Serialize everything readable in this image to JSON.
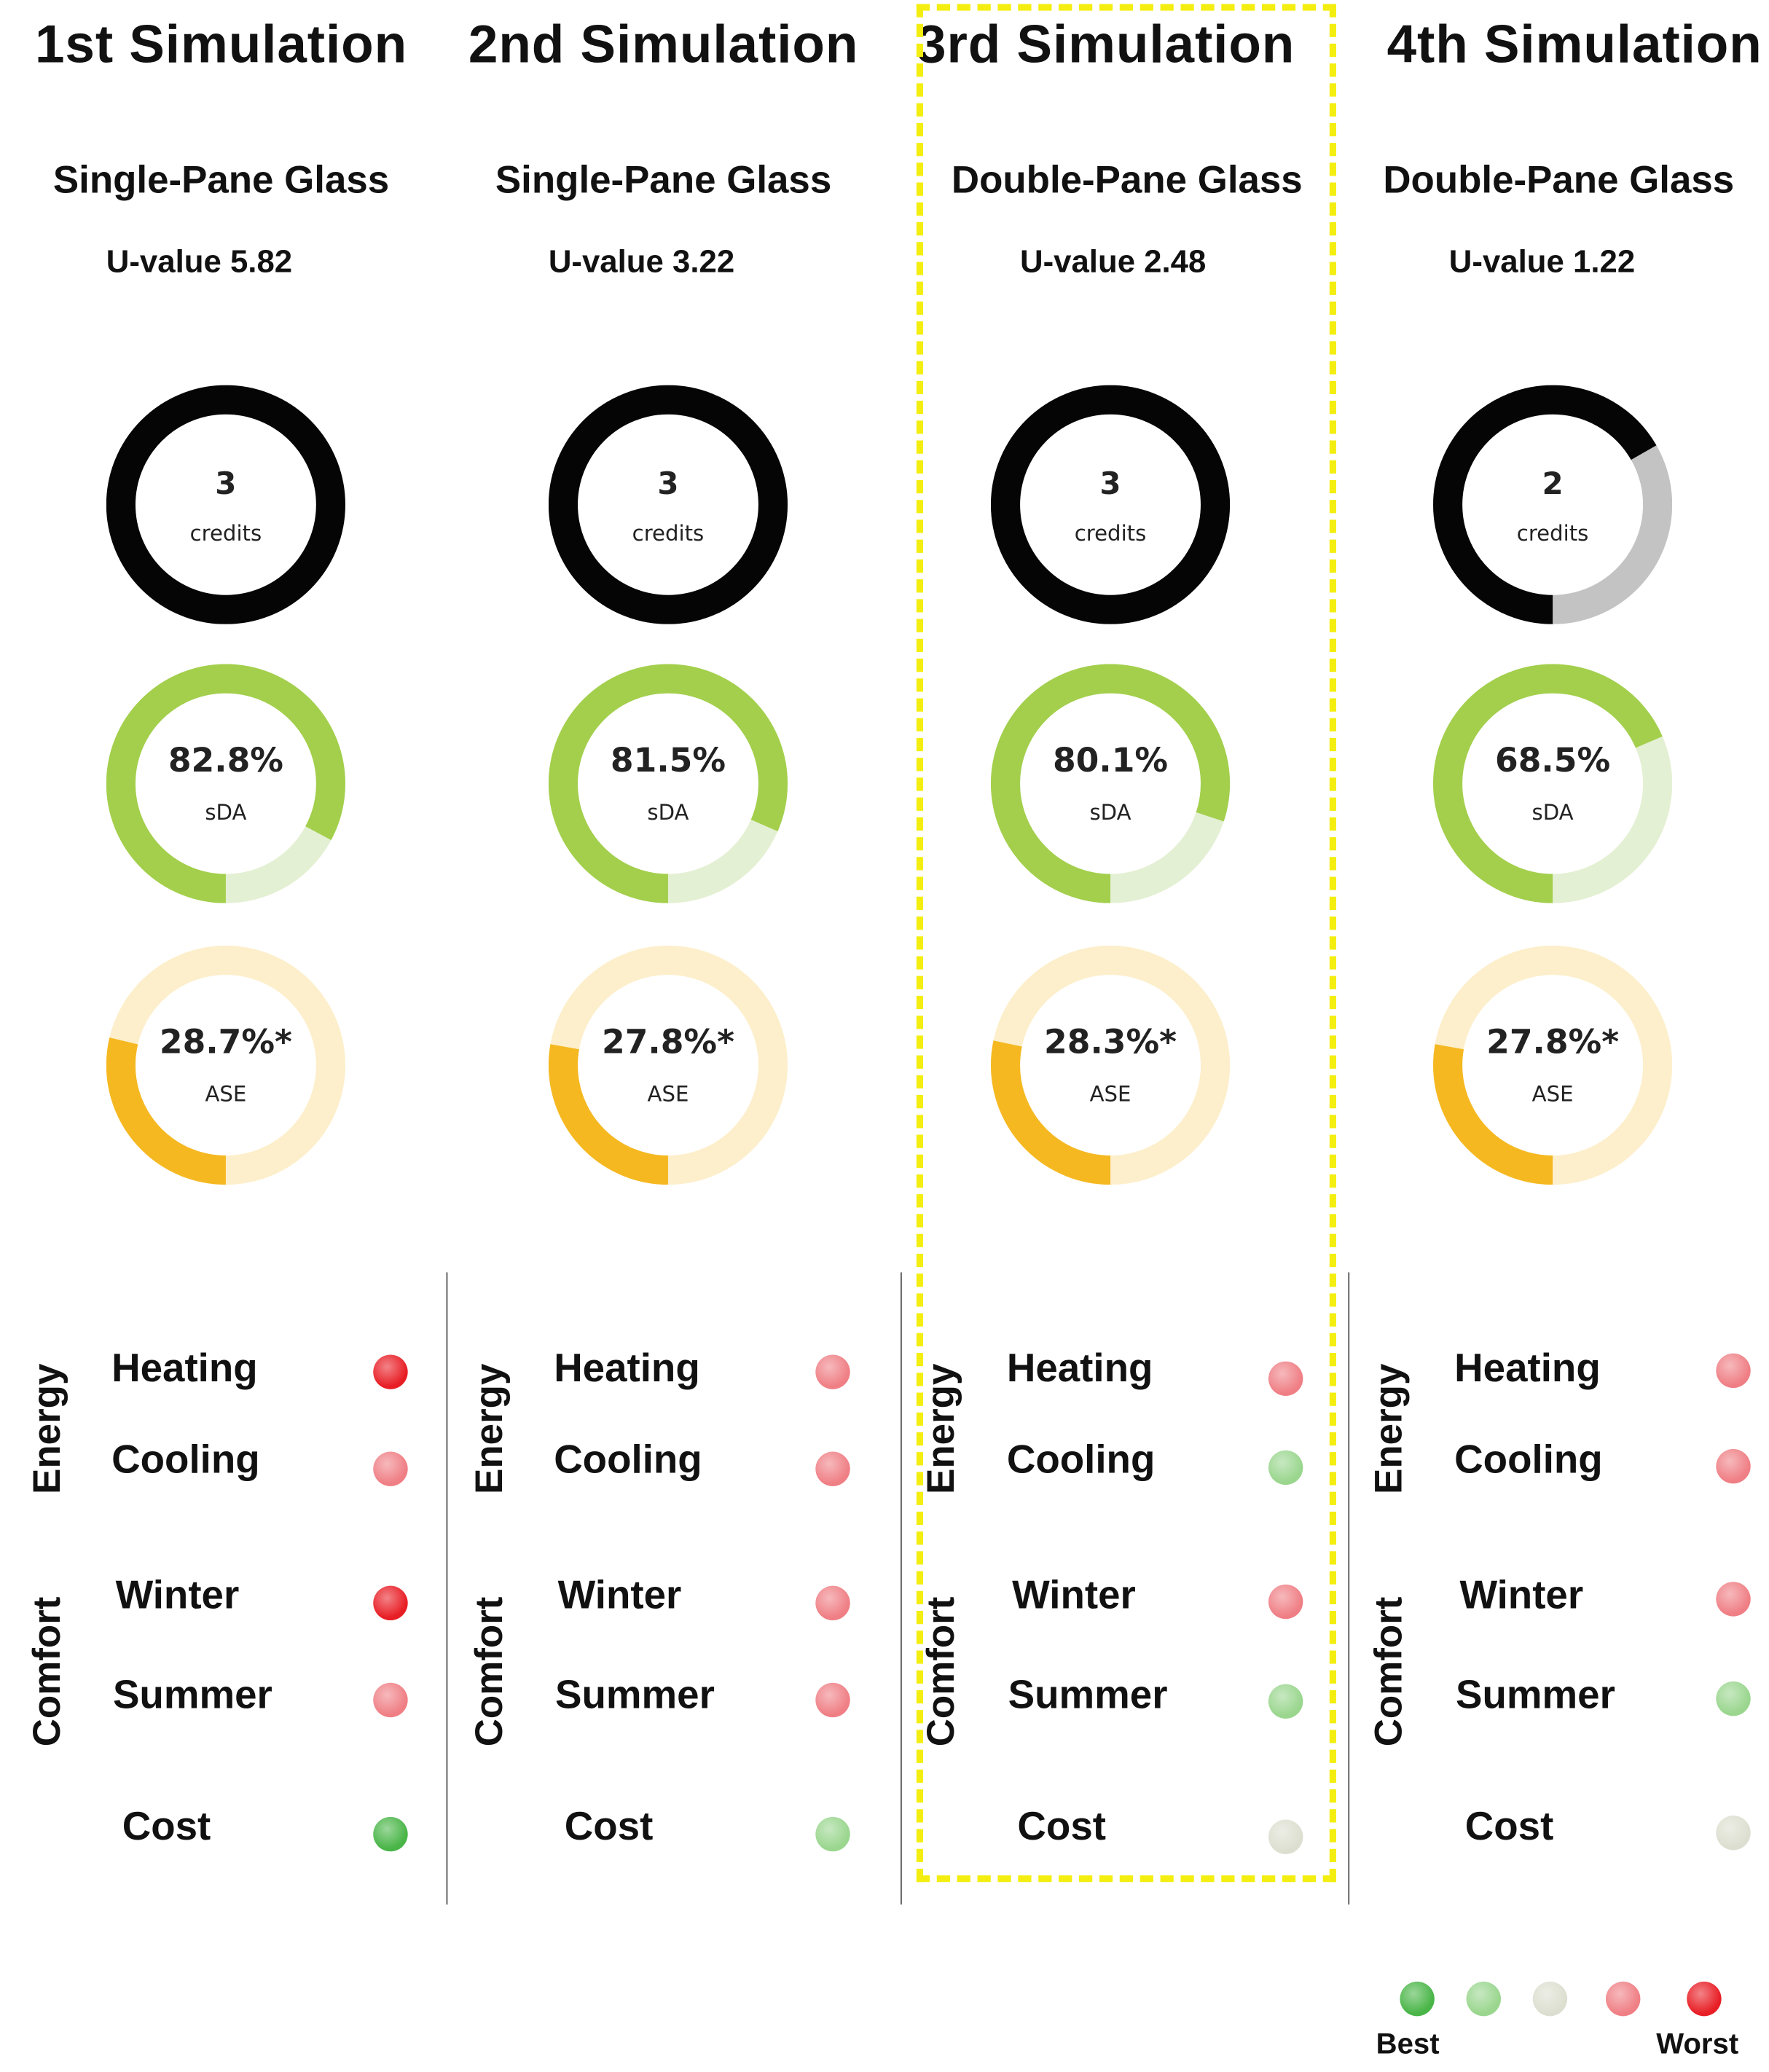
{
  "colors": {
    "credits_fill": "#050505",
    "credits_rest": "#c3c3c3",
    "sda_fill": "#a3cf4c",
    "sda_rest": "#e4f0d3",
    "ase_fill": "#f5b821",
    "ase_rest": "#fdefcb",
    "rating": {
      "best": "#49b547",
      "good": "#9ad68e",
      "neutral": "#dcdfd0",
      "bad": "#ef7f85",
      "worst": "#e81e25"
    },
    "highlight_border": "#f4ee10"
  },
  "labels": {
    "energy": "Energy",
    "comfort": "Comfort",
    "heating": "Heating",
    "cooling": "Cooling",
    "winter": "Winter",
    "summer": "Summer",
    "cost": "Cost",
    "credits_unit": "credits",
    "sda_unit": "sDA",
    "ase_unit": "ASE"
  },
  "simulations": [
    {
      "title": "1st Simulation",
      "glass": "Single-Pane Glass",
      "u_value": "U-value 5.82",
      "credits": "3",
      "credits_fraction": 1.0,
      "sda": "82.8%",
      "sda_fraction": 0.828,
      "ase": "28.7%*",
      "ase_fraction": 0.287,
      "ratings": {
        "heating": "worst",
        "cooling": "bad",
        "winter": "worst",
        "summer": "bad",
        "cost": "best"
      }
    },
    {
      "title": "2nd Simulation",
      "glass": "Single-Pane Glass",
      "u_value": "U-value 3.22",
      "credits": "3",
      "credits_fraction": 1.0,
      "sda": "81.5%",
      "sda_fraction": 0.815,
      "ase": "27.8%*",
      "ase_fraction": 0.278,
      "ratings": {
        "heating": "bad",
        "cooling": "bad",
        "winter": "bad",
        "summer": "bad",
        "cost": "good"
      }
    },
    {
      "title": "3rd Simulation",
      "glass": "Double-Pane Glass",
      "u_value": "U-value 2.48",
      "credits": "3",
      "credits_fraction": 1.0,
      "sda": "80.1%",
      "sda_fraction": 0.801,
      "ase": "28.3%*",
      "ase_fraction": 0.283,
      "ratings": {
        "heating": "bad",
        "cooling": "good",
        "winter": "bad",
        "summer": "good",
        "cost": "neutral"
      }
    },
    {
      "title": "4th Simulation",
      "glass": "Double-Pane Glass",
      "u_value": "U-value 1.22",
      "credits": "2",
      "credits_fraction": 0.667,
      "sda": "68.5%",
      "sda_fraction": 0.685,
      "ase": "27.8%*",
      "ase_fraction": 0.278,
      "ratings": {
        "heating": "bad",
        "cooling": "bad",
        "winter": "bad",
        "summer": "good",
        "cost": "neutral"
      }
    }
  ],
  "legend": {
    "scale": [
      "best",
      "good",
      "neutral",
      "bad",
      "worst"
    ],
    "best_label": "Best",
    "worst_label": "Worst"
  }
}
